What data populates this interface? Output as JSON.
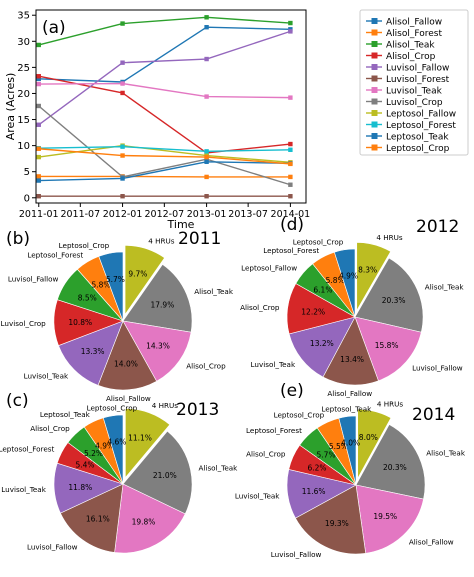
{
  "chart_data": [
    {
      "type": "line",
      "panel_label": "(a)",
      "xlabel": "Time",
      "ylabel": "Area (Acres)",
      "x": [
        "2011-01-01",
        "2012-01-01",
        "2013-01-01",
        "2014-01-01"
      ],
      "xticks": [
        "2011-01",
        "2011-07",
        "2012-01",
        "2012-07",
        "2013-01",
        "2013-07",
        "2014-01"
      ],
      "xlim": [
        "2010-12-20",
        "2014-03-10"
      ],
      "ylim": [
        -1,
        36
      ],
      "yticks": [
        0,
        5,
        10,
        15,
        20,
        25,
        30,
        35
      ],
      "grid": false,
      "legend_position": "right-outside",
      "series": [
        {
          "name": "Alisol_Fallow",
          "color": "#1f77b4",
          "marker": "square",
          "values": [
            22.8,
            22.2,
            32.7,
            32.3
          ]
        },
        {
          "name": "Alisol_Forest",
          "color": "#ff7f0e",
          "marker": "square",
          "values": [
            4.1,
            4.1,
            4.0,
            4.0
          ]
        },
        {
          "name": "Alisol_Teak",
          "color": "#2ca02c",
          "marker": "square",
          "values": [
            29.3,
            33.4,
            34.6,
            33.5
          ]
        },
        {
          "name": "Alisol_Crop",
          "color": "#d62728",
          "marker": "square",
          "values": [
            23.3,
            20.1,
            8.6,
            10.3
          ]
        },
        {
          "name": "Luvisol_Fallow",
          "color": "#9467bd",
          "marker": "square",
          "values": [
            14.0,
            25.9,
            26.6,
            31.9
          ]
        },
        {
          "name": "Luvisol_Forest",
          "color": "#8c564b",
          "marker": "square",
          "values": [
            0.3,
            0.3,
            0.3,
            0.3
          ]
        },
        {
          "name": "Luvisol_Teak",
          "color": "#e377c2",
          "marker": "square",
          "values": [
            21.8,
            21.9,
            19.4,
            19.2
          ]
        },
        {
          "name": "Luvisol_Crop",
          "color": "#7f7f7f",
          "marker": "square",
          "values": [
            17.6,
            4.0,
            7.4,
            2.5
          ]
        },
        {
          "name": "Leptosol_Fallow",
          "color": "#bcbd22",
          "marker": "square",
          "values": [
            7.8,
            10.0,
            8.1,
            6.8
          ]
        },
        {
          "name": "Leptosol_Forest",
          "color": "#17becf",
          "marker": "square",
          "values": [
            9.5,
            9.8,
            8.9,
            9.2
          ]
        },
        {
          "name": "Leptosol_Teak",
          "color": "#1f77b4",
          "marker": "square",
          "values": [
            3.3,
            3.7,
            6.9,
            6.6
          ]
        },
        {
          "name": "Leptosol_Crop",
          "color": "#ff7f0e",
          "marker": "square",
          "values": [
            9.4,
            8.1,
            7.8,
            6.5
          ]
        }
      ]
    },
    {
      "type": "pie",
      "panel_label": "(b)",
      "title": "2011",
      "slices": [
        {
          "label": "4 HRUs",
          "value": 9.7,
          "pct": "9.7%",
          "color": "#bcbd22",
          "explode": true
        },
        {
          "label": "Alisol_Teak",
          "value": 17.9,
          "pct": "17.9%",
          "color": "#7f7f7f"
        },
        {
          "label": "Alisol_Crop",
          "value": 14.3,
          "pct": "14.3%",
          "color": "#e377c2"
        },
        {
          "label": "Alisol_Fallow",
          "value": 14.0,
          "pct": "14.0%",
          "color": "#8c564b"
        },
        {
          "label": "Luvisol_Teak",
          "value": 13.3,
          "pct": "13.3%",
          "color": "#9467bd"
        },
        {
          "label": "Luvisol_Crop",
          "value": 10.8,
          "pct": "10.8%",
          "color": "#d62728"
        },
        {
          "label": "Luvisol_Fallow",
          "value": 8.5,
          "pct": "8.5%",
          "color": "#2ca02c"
        },
        {
          "label": "Leptosol_Forest",
          "value": 5.8,
          "pct": "5.8%",
          "color": "#ff7f0e"
        },
        {
          "label": "Leptosol_Crop",
          "value": 5.7,
          "pct": "5.7%",
          "color": "#1f77b4"
        }
      ]
    },
    {
      "type": "pie",
      "panel_label": "(d)",
      "title": "2012",
      "slices": [
        {
          "label": "4 HRUs",
          "value": 8.3,
          "pct": "8.3%",
          "color": "#bcbd22",
          "explode": true
        },
        {
          "label": "Alisol_Teak",
          "value": 20.3,
          "pct": "20.3%",
          "color": "#7f7f7f"
        },
        {
          "label": "Luvisol_Fallow",
          "value": 15.8,
          "pct": "15.8%",
          "color": "#e377c2"
        },
        {
          "label": "Alisol_Fallow",
          "value": 13.4,
          "pct": "13.4%",
          "color": "#8c564b"
        },
        {
          "label": "Luvisol_Teak",
          "value": 13.2,
          "pct": "13.2%",
          "color": "#9467bd"
        },
        {
          "label": "Alisol_Crop",
          "value": 12.2,
          "pct": "12.2%",
          "color": "#d62728"
        },
        {
          "label": "Leptosol_Fallow",
          "value": 6.1,
          "pct": "6.1%",
          "color": "#2ca02c"
        },
        {
          "label": "Leptosol_Forest",
          "value": 5.8,
          "pct": "5.8%",
          "color": "#ff7f0e"
        },
        {
          "label": "Leptosol_Crop",
          "value": 4.9,
          "pct": "4.9%",
          "color": "#1f77b4"
        }
      ]
    },
    {
      "type": "pie",
      "panel_label": "(c)",
      "title": "2013",
      "slices": [
        {
          "label": "4 HRUs",
          "value": 11.1,
          "pct": "11.1%",
          "color": "#bcbd22",
          "explode": true
        },
        {
          "label": "Alisol_Teak",
          "value": 21.0,
          "pct": "21.0%",
          "color": "#7f7f7f"
        },
        {
          "label": "",
          "value": 19.8,
          "pct": "19.8%",
          "color": "#e377c2"
        },
        {
          "label": "Luvisol_Fallow",
          "value": 16.1,
          "pct": "16.1%",
          "color": "#8c564b"
        },
        {
          "label": "Luvisol_Teak",
          "value": 11.8,
          "pct": "11.8%",
          "color": "#9467bd"
        },
        {
          "label": "Leptosol_Forest",
          "value": 5.4,
          "pct": "5.4%",
          "color": "#d62728"
        },
        {
          "label": "Alisol_Crop",
          "value": 5.2,
          "pct": "5.2%",
          "color": "#2ca02c"
        },
        {
          "label": "Leptosol_Teak",
          "value": 4.9,
          "pct": "4.9%",
          "color": "#ff7f0e"
        },
        {
          "label": "Leptosol_Crop",
          "value": 4.6,
          "pct": "4.6%",
          "color": "#1f77b4"
        }
      ]
    },
    {
      "type": "pie",
      "panel_label": "(e)",
      "title": "2014",
      "slices": [
        {
          "label": "4 HRUs",
          "value": 8.0,
          "pct": "8.0%",
          "color": "#bcbd22",
          "explode": true
        },
        {
          "label": "Alisol_Teak",
          "value": 20.3,
          "pct": "20.3%",
          "color": "#7f7f7f"
        },
        {
          "label": "Alisol_Fallow",
          "value": 19.5,
          "pct": "19.5%",
          "color": "#e377c2"
        },
        {
          "label": "Luvisol_Fallow",
          "value": 19.3,
          "pct": "19.3%",
          "color": "#8c564b"
        },
        {
          "label": "Luvisol_Teak",
          "value": 11.6,
          "pct": "11.6%",
          "color": "#9467bd"
        },
        {
          "label": "Alisol_Crop",
          "value": 6.2,
          "pct": "6.2%",
          "color": "#d62728"
        },
        {
          "label": "Leptosol_Forest",
          "value": 5.7,
          "pct": "5.7%",
          "color": "#2ca02c"
        },
        {
          "label": "Leptosol_Crop",
          "value": 5.5,
          "pct": "5.5%",
          "color": "#ff7f0e"
        },
        {
          "label": "Leptosol_Teak",
          "value": 4.0,
          "pct": "4.0%",
          "color": "#1f77b4"
        }
      ]
    }
  ]
}
